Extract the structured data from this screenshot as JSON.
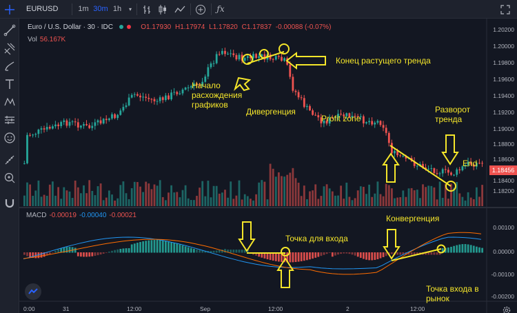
{
  "toolbar": {
    "symbol": "EURUSD",
    "timeframes": [
      "1m",
      "30m",
      "1h"
    ],
    "active_timeframe": "30m"
  },
  "legend": {
    "instrument": "Euro / U.S. Dollar · 30 · IDC",
    "open": "O1.17930",
    "high": "H1.17974",
    "low": "L1.17820",
    "close": "C1.17837",
    "change": "-0.00088 (-0.07%)",
    "vol_label": "Vol",
    "vol_value": "56.167K",
    "macd_label": "MACD",
    "macd_values": [
      "-0.00019",
      "-0.00040",
      "-0.00021"
    ]
  },
  "price_scale": [
    "1.20200",
    "1.20000",
    "1.19800",
    "1.19600",
    "1.19400",
    "1.19200",
    "1.19000",
    "1.18800",
    "1.18600",
    "1.18400",
    "1.18200"
  ],
  "macd_scale": [
    "0.00100",
    "0.00000",
    "-0.00100",
    "-0.00200"
  ],
  "last_price": "1.18456",
  "time_scale": [
    "0:00",
    "31",
    "12:00",
    "Sep",
    "12:00",
    "2",
    "12:00"
  ],
  "annotations": {
    "trend_end": "Конец растущего тренда",
    "divergence_start": "Начало расхождения графиков",
    "divergence": "Дивергенция",
    "profit_zone": "Profit zone",
    "reversal": "Разворот тренда",
    "end": "End",
    "entry_point": "Точка для входа",
    "convergence": "Конвергенция",
    "market_entry": "Точка входа в рынок"
  },
  "colors": {
    "background": "#131722",
    "up": "#26a69a",
    "down": "#ef5350",
    "annotation": "#f5e62a",
    "macd_line": "#2196f3",
    "signal_line": "#ff6d00"
  },
  "icons": {
    "toolbar": [
      "crosshair-icon",
      "bar-style-icon",
      "candle-style-icon",
      "indicators-icon",
      "add-compare-icon",
      "fx-icon",
      "fullscreen-icon"
    ],
    "left_tools": [
      "cursor-icon",
      "trendline-icon",
      "pitchfork-icon",
      "brush-icon",
      "text-icon",
      "pattern-icon",
      "forecast-icon",
      "emoji-icon",
      "ruler-icon",
      "zoom-icon",
      "magnet-icon"
    ]
  }
}
